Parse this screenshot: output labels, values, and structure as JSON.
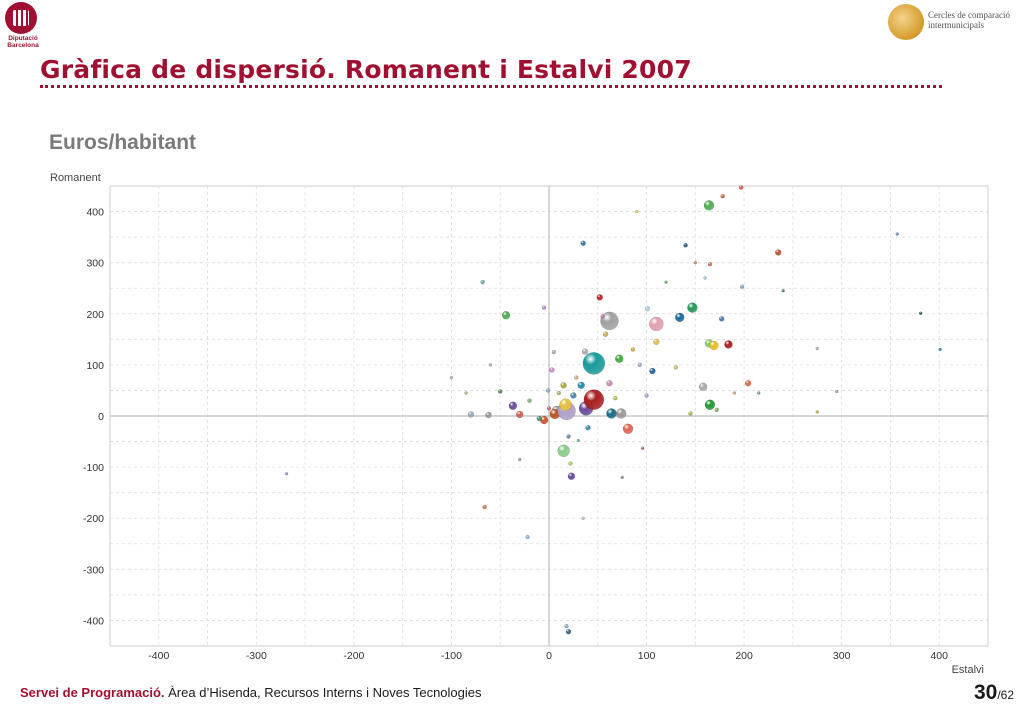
{
  "header": {
    "left_logo_text": [
      "Diputació",
      "Barcelona"
    ],
    "right_logo_text": [
      "Cercles de comparació",
      "intermunicipals"
    ],
    "title": "Gràfica de dispersió. Romanent i Estalvi 2007",
    "subtitle": "Euros/habitant"
  },
  "footer": {
    "org": "Servei de Programació.",
    "dept": "Àrea d’Hisenda, Recursos Interns i Noves Tecnologies",
    "page_current": "30",
    "page_total": "/62"
  },
  "chart_data": {
    "type": "scatter",
    "title": "",
    "xlabel": "Estalvi",
    "ylabel": "Romanent",
    "xlim": [
      -450,
      450
    ],
    "ylim": [
      -450,
      450
    ],
    "xticks": [
      -400,
      -300,
      -200,
      -100,
      0,
      100,
      200,
      300,
      400
    ],
    "yticks": [
      -400,
      -300,
      -200,
      -100,
      0,
      100,
      200,
      300,
      400
    ],
    "grid": true,
    "points": [
      {
        "x": -269,
        "y": -113,
        "r": 1.5,
        "c": "#8899bb"
      },
      {
        "x": -66,
        "y": -178,
        "r": 2,
        "c": "#d07060"
      },
      {
        "x": -68,
        "y": 262,
        "r": 2,
        "c": "#66aaaa"
      },
      {
        "x": -44,
        "y": 197,
        "r": 4,
        "c": "#55aa55"
      },
      {
        "x": -80,
        "y": 3,
        "r": 3,
        "c": "#9aaab8"
      },
      {
        "x": -62,
        "y": 2,
        "r": 3,
        "c": "#999999"
      },
      {
        "x": -37,
        "y": 20,
        "r": 4,
        "c": "#6a4a9a"
      },
      {
        "x": -30,
        "y": 3,
        "r": 3.5,
        "c": "#d06050"
      },
      {
        "x": -22,
        "y": -237,
        "r": 2,
        "c": "#8ab4d8"
      },
      {
        "x": -5,
        "y": 212,
        "r": 2,
        "c": "#bb88cc"
      },
      {
        "x": -1,
        "y": 50,
        "r": 2,
        "c": "#88aacc"
      },
      {
        "x": 3,
        "y": 90,
        "r": 2.5,
        "c": "#cc88cc"
      },
      {
        "x": 5,
        "y": 125,
        "r": 2,
        "c": "#aaaaaa"
      },
      {
        "x": 8,
        "y": 10,
        "r": 5,
        "c": "#999999"
      },
      {
        "x": -5,
        "y": -8,
        "r": 4,
        "c": "#cc5533"
      },
      {
        "x": 6,
        "y": 4,
        "r": 5,
        "c": "#bb5522"
      },
      {
        "x": 15,
        "y": 60,
        "r": 3,
        "c": "#aaaa44"
      },
      {
        "x": 15,
        "y": -68,
        "r": 6,
        "c": "#88cc88"
      },
      {
        "x": 18,
        "y": 10,
        "r": 9,
        "c": "#b0a0c8"
      },
      {
        "x": 17,
        "y": 22,
        "r": 6,
        "c": "#e8c040"
      },
      {
        "x": 20,
        "y": -40,
        "r": 2,
        "c": "#6688aa"
      },
      {
        "x": 22,
        "y": -93,
        "r": 2,
        "c": "#aacc66"
      },
      {
        "x": 23,
        "y": -118,
        "r": 3.5,
        "c": "#6a4a9a"
      },
      {
        "x": 18,
        "y": -411,
        "r": 2,
        "c": "#88aacc"
      },
      {
        "x": 20,
        "y": -422,
        "r": 2.5,
        "c": "#336688"
      },
      {
        "x": 25,
        "y": 40,
        "r": 3,
        "c": "#4488aa"
      },
      {
        "x": 30,
        "y": -48,
        "r": 1.5,
        "c": "#66aaaa"
      },
      {
        "x": 33,
        "y": 60,
        "r": 3.5,
        "c": "#2288aa"
      },
      {
        "x": 35,
        "y": 338,
        "r": 2.5,
        "c": "#337799"
      },
      {
        "x": 37,
        "y": 126,
        "r": 3,
        "c": "#aaaaaa"
      },
      {
        "x": 38,
        "y": 15,
        "r": 7,
        "c": "#6a4a9a"
      },
      {
        "x": 46,
        "y": 103,
        "r": 11,
        "c": "#1a9a9a"
      },
      {
        "x": 46,
        "y": 32,
        "r": 10,
        "c": "#a82020"
      },
      {
        "x": 52,
        "y": 232,
        "r": 3,
        "c": "#bb2222"
      },
      {
        "x": 58,
        "y": 160,
        "r": 2.5,
        "c": "#ccaa55"
      },
      {
        "x": 62,
        "y": 186,
        "r": 9,
        "c": "#a0a0a0"
      },
      {
        "x": 64,
        "y": 5,
        "r": 5,
        "c": "#1a6a8a"
      },
      {
        "x": 62,
        "y": 64,
        "r": 3,
        "c": "#cc88aa"
      },
      {
        "x": 72,
        "y": 112,
        "r": 4,
        "c": "#44aa44"
      },
      {
        "x": 74,
        "y": 5,
        "r": 5,
        "c": "#999999"
      },
      {
        "x": 81,
        "y": -25,
        "r": 5,
        "c": "#dd6655"
      },
      {
        "x": 86,
        "y": 130,
        "r": 2,
        "c": "#ccaa44"
      },
      {
        "x": 101,
        "y": 210,
        "r": 2.5,
        "c": "#aaccdd"
      },
      {
        "x": 106,
        "y": 88,
        "r": 3,
        "c": "#2266aa"
      },
      {
        "x": 110,
        "y": 180,
        "r": 7,
        "c": "#e0a0b0"
      },
      {
        "x": 110,
        "y": 145,
        "r": 3,
        "c": "#ddbb55"
      },
      {
        "x": 134,
        "y": 193,
        "r": 4.5,
        "c": "#1a6a9a"
      },
      {
        "x": 147,
        "y": 212,
        "r": 5,
        "c": "#229955"
      },
      {
        "x": 140,
        "y": 334,
        "r": 2,
        "c": "#225588"
      },
      {
        "x": 158,
        "y": 57,
        "r": 4,
        "c": "#aaaaaa"
      },
      {
        "x": 164,
        "y": 412,
        "r": 5,
        "c": "#55aa55"
      },
      {
        "x": 164,
        "y": 142,
        "r": 4,
        "c": "#88cc66"
      },
      {
        "x": 169,
        "y": 138,
        "r": 4.5,
        "c": "#e8c020"
      },
      {
        "x": 165,
        "y": 22,
        "r": 5,
        "c": "#229933"
      },
      {
        "x": 184,
        "y": 140,
        "r": 4,
        "c": "#a82020"
      },
      {
        "x": 177,
        "y": 190,
        "r": 2.5,
        "c": "#4477aa"
      },
      {
        "x": 165,
        "y": 297,
        "r": 2,
        "c": "#cc7755"
      },
      {
        "x": 178,
        "y": 430,
        "r": 2,
        "c": "#cc6644"
      },
      {
        "x": 197,
        "y": 447,
        "r": 2,
        "c": "#dd5544"
      },
      {
        "x": 204,
        "y": 64,
        "r": 3,
        "c": "#dd6644"
      },
      {
        "x": 235,
        "y": 320,
        "r": 3,
        "c": "#b85530"
      },
      {
        "x": 198,
        "y": 253,
        "r": 2,
        "c": "#88aacc"
      },
      {
        "x": 275,
        "y": 8,
        "r": 1.5,
        "c": "#aaaa44"
      },
      {
        "x": 357,
        "y": 356,
        "r": 1.5,
        "c": "#6688aa"
      },
      {
        "x": 381,
        "y": 201,
        "r": 1.5,
        "c": "#225566"
      },
      {
        "x": 401,
        "y": 130,
        "r": 1.5,
        "c": "#3388aa"
      },
      {
        "x": -20,
        "y": 30,
        "r": 2,
        "c": "#77aa77"
      },
      {
        "x": -10,
        "y": -5,
        "r": 2.5,
        "c": "#449966"
      },
      {
        "x": 0,
        "y": 15,
        "r": 2,
        "c": "#cc6666"
      },
      {
        "x": 10,
        "y": 45,
        "r": 2,
        "c": "#99bb66"
      },
      {
        "x": 28,
        "y": 75,
        "r": 2,
        "c": "#ccaa88"
      },
      {
        "x": 40,
        "y": -23,
        "r": 2.5,
        "c": "#3388aa"
      },
      {
        "x": 55,
        "y": 195,
        "r": 2,
        "c": "#bb77aa"
      },
      {
        "x": 68,
        "y": 35,
        "r": 2,
        "c": "#bbbb55"
      },
      {
        "x": 75,
        "y": -120,
        "r": 1.5,
        "c": "#998877"
      },
      {
        "x": 93,
        "y": 100,
        "r": 2,
        "c": "#99aacc"
      },
      {
        "x": 96,
        "y": -63,
        "r": 1.5,
        "c": "#aa6655"
      },
      {
        "x": 100,
        "y": 40,
        "r": 2,
        "c": "#aa99cc"
      },
      {
        "x": 120,
        "y": 262,
        "r": 1.5,
        "c": "#66aa66"
      },
      {
        "x": 130,
        "y": 95,
        "r": 2,
        "c": "#ccbb66"
      },
      {
        "x": 145,
        "y": 5,
        "r": 2,
        "c": "#aabb44"
      },
      {
        "x": 150,
        "y": 300,
        "r": 1.5,
        "c": "#cc8855"
      },
      {
        "x": 160,
        "y": 270,
        "r": 1.5,
        "c": "#99bbcc"
      },
      {
        "x": 172,
        "y": 12,
        "r": 2,
        "c": "#88aa66"
      },
      {
        "x": 190,
        "y": 45,
        "r": 1.5,
        "c": "#cc9966"
      },
      {
        "x": 215,
        "y": 45,
        "r": 1.5,
        "c": "#6699aa"
      },
      {
        "x": 240,
        "y": 245,
        "r": 1.5,
        "c": "#448866"
      },
      {
        "x": 275,
        "y": 132,
        "r": 1.5,
        "c": "#aaaaaa"
      },
      {
        "x": 295,
        "y": 48,
        "r": 1.5,
        "c": "#88aa88"
      },
      {
        "x": -50,
        "y": 48,
        "r": 2,
        "c": "#558855"
      },
      {
        "x": -85,
        "y": 45,
        "r": 1.5,
        "c": "#99aa77"
      },
      {
        "x": -100,
        "y": 75,
        "r": 1.5,
        "c": "#aaaaaa"
      },
      {
        "x": -60,
        "y": 100,
        "r": 1.5,
        "c": "#aa99bb"
      },
      {
        "x": 90,
        "y": 400,
        "r": 1.5,
        "c": "#ddcc66"
      },
      {
        "x": -30,
        "y": -85,
        "r": 1.5,
        "c": "#8899aa"
      },
      {
        "x": 35,
        "y": -200,
        "r": 1.5,
        "c": "#aabbcc"
      }
    ]
  }
}
